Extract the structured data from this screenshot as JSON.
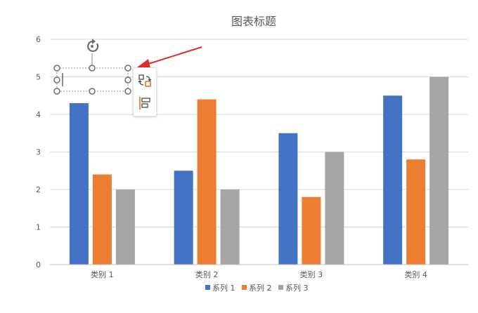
{
  "chart_data": {
    "type": "bar",
    "title": "图表标题",
    "categories": [
      "类别 1",
      "类别 2",
      "类别 3",
      "类别 4"
    ],
    "series": [
      {
        "name": "系列 1",
        "color": "#4472c4",
        "values": [
          4.3,
          2.5,
          3.5,
          4.5
        ]
      },
      {
        "name": "系列 2",
        "color": "#ed7d31",
        "values": [
          2.4,
          4.4,
          1.8,
          2.8
        ]
      },
      {
        "name": "系列 3",
        "color": "#a5a5a5",
        "values": [
          2,
          2,
          3,
          5
        ]
      }
    ],
    "ylim": [
      0,
      6
    ],
    "yticks": [
      0,
      1,
      2,
      3,
      4,
      5,
      6
    ],
    "grid": true,
    "legend": "bottom"
  },
  "ui": {
    "selected_element": "text box",
    "icons": [
      "rotate-handle-icon",
      "layout-options-icon",
      "align-icon",
      "arrow-icon"
    ],
    "arrow_color": "#e02b2b"
  }
}
